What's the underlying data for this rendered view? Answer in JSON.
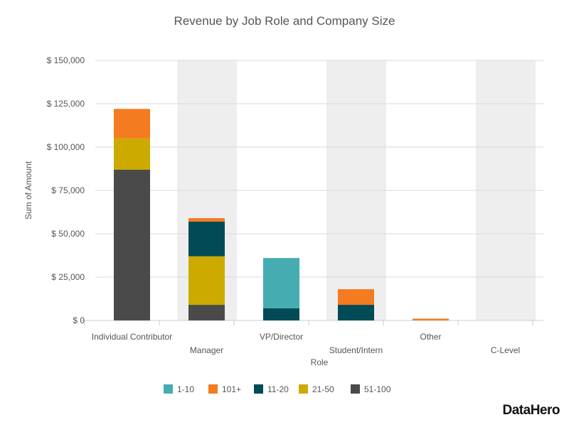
{
  "chart_data": {
    "type": "bar",
    "stacked": true,
    "title": "Revenue by Job Role and Company Size",
    "xlabel": "Role",
    "ylabel": "Sum of Amount",
    "ylim": [
      0,
      150000
    ],
    "yticks": [
      0,
      25000,
      50000,
      75000,
      100000,
      125000,
      150000
    ],
    "ytick_labels": [
      "$ 0",
      "$ 25,000",
      "$ 50,000",
      "$ 75,000",
      "$ 100,000",
      "$ 125,000",
      "$ 150,000"
    ],
    "categories": [
      "Individual Contributor",
      "Manager",
      "VP/Director",
      "Student/Intern",
      "Other",
      "C-Level"
    ],
    "series": [
      {
        "name": "51-100",
        "color": "#4a4a4a",
        "values": [
          87000,
          9000,
          0,
          0,
          0,
          0
        ]
      },
      {
        "name": "21-50",
        "color": "#ccaa00",
        "values": [
          18000,
          28000,
          0,
          0,
          0,
          0
        ]
      },
      {
        "name": "11-20",
        "color": "#004b55",
        "values": [
          0,
          20000,
          7000,
          9000,
          0,
          0
        ]
      },
      {
        "name": "1-10",
        "color": "#45adb2",
        "values": [
          0,
          0,
          29000,
          0,
          0,
          0
        ]
      },
      {
        "name": "101+",
        "color": "#f47b20",
        "values": [
          17000,
          2000,
          0,
          9000,
          1000,
          0
        ]
      }
    ],
    "legend_order": [
      "1-10",
      "101+",
      "11-20",
      "21-50",
      "51-100"
    ],
    "legend_position": "bottom"
  },
  "brand": {
    "logo_text": "DataHero"
  },
  "colors": {
    "band": "#eeeeee",
    "grid": "#d9d9d9",
    "text": "#555555"
  }
}
